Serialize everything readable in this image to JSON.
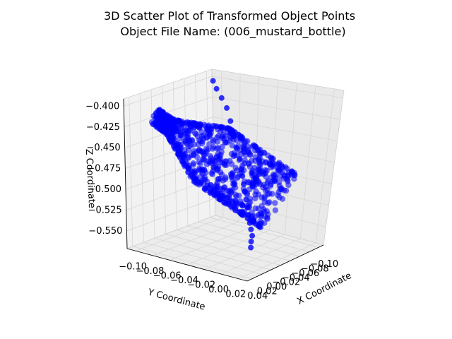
{
  "chart_data": {
    "type": "scatter",
    "projection": "3d",
    "title": "3D Scatter Plot of Transformed Object Points",
    "subtitle": "Object File Name: (006_mustard_bottle)",
    "xlabel": "X Coordinate",
    "ylabel": "Y Coordinate",
    "zlabel": "Z Coordinate",
    "xticks": [
      "−0.10",
      "−0.08",
      "−0.06",
      "−0.04",
      "−0.02",
      "0.00",
      "0.02",
      "0.04"
    ],
    "yticks": [
      "−0.10",
      "−0.08",
      "−0.06",
      "−0.04",
      "−0.02",
      "0.00",
      "0.02"
    ],
    "zticks": [
      "−0.400",
      "−0.425",
      "−0.450",
      "−0.475",
      "−0.500",
      "−0.525",
      "−0.550"
    ],
    "xlim": [
      -0.11,
      0.05
    ],
    "ylim": [
      -0.11,
      0.03
    ],
    "zlim": [
      -0.56,
      -0.39
    ],
    "grid": true,
    "legend": "none",
    "marker_color": "#0000ff",
    "series": [
      {
        "values_description_note": "",
        "points": [
          {
            "x": -0.095,
            "y": -0.098,
            "z": -0.397
          },
          {
            "x": -0.09,
            "y": -0.09,
            "z": -0.403
          },
          {
            "x": -0.085,
            "y": -0.08,
            "z": -0.41
          },
          {
            "x": -0.08,
            "y": -0.07,
            "z": -0.418
          },
          {
            "x": -0.075,
            "y": -0.062,
            "z": -0.43
          },
          {
            "x": -0.07,
            "y": -0.055,
            "z": -0.445
          },
          {
            "x": -0.065,
            "y": -0.048,
            "z": -0.455
          },
          {
            "x": -0.06,
            "y": -0.04,
            "z": -0.465
          },
          {
            "x": -0.055,
            "y": -0.035,
            "z": -0.475
          },
          {
            "x": -0.05,
            "y": -0.03,
            "z": -0.48
          },
          {
            "x": -0.045,
            "y": -0.025,
            "z": -0.487
          },
          {
            "x": -0.04,
            "y": -0.02,
            "z": -0.493
          },
          {
            "x": -0.035,
            "y": -0.015,
            "z": -0.5
          },
          {
            "x": -0.03,
            "y": -0.01,
            "z": -0.507
          },
          {
            "x": -0.025,
            "y": -0.005,
            "z": -0.513
          },
          {
            "x": -0.02,
            "y": 0.0,
            "z": -0.52
          },
          {
            "x": -0.015,
            "y": 0.005,
            "z": -0.525
          },
          {
            "x": -0.01,
            "y": 0.01,
            "z": -0.53
          },
          {
            "x": -0.005,
            "y": 0.012,
            "z": -0.535
          },
          {
            "x": 0.0,
            "y": 0.015,
            "z": -0.54
          }
        ]
      }
    ]
  }
}
